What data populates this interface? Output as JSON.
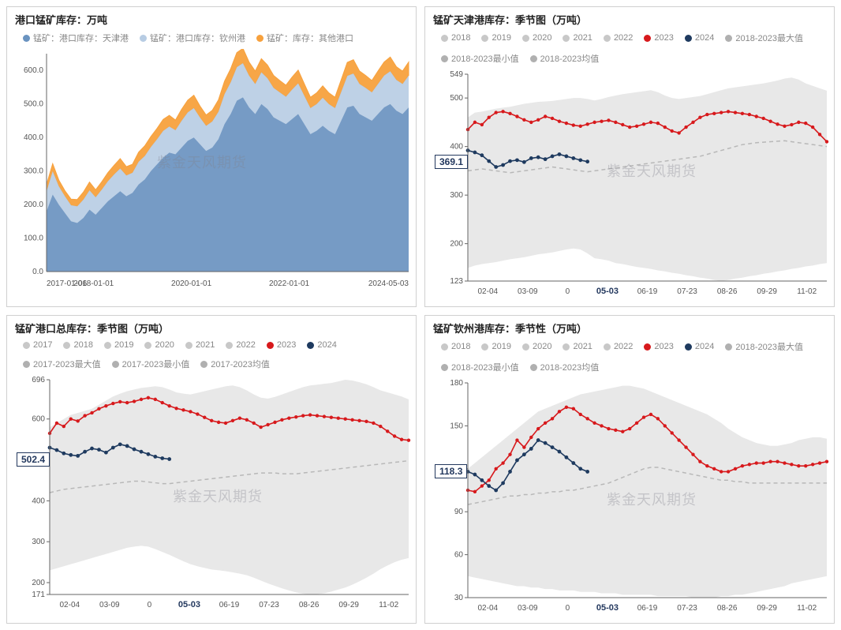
{
  "watermark": "紫金天风期货",
  "colors": {
    "red2023": "#d7191c",
    "navy2024": "#1e3a5f",
    "grayLight": "#c8c8c8",
    "grayMid": "#b0b0b0",
    "grayDash": "#b8b8b8",
    "bandFill": "#e8e8e8",
    "areaBlue": "#6a93c0",
    "areaLightBlue": "#b7cce3",
    "areaOrange": "#f7a13d",
    "axis": "#666666"
  },
  "chart1": {
    "title": "港口锰矿库存：万吨",
    "type": "stacked-area",
    "legend": [
      {
        "label": "锰矿：港口库存：天津港",
        "color": "#6a93c0"
      },
      {
        "label": "锰矿：港口库存：钦州港",
        "color": "#b7cce3"
      },
      {
        "label": "锰矿：库存：其他港口",
        "color": "#f7a13d"
      }
    ],
    "yaxis": {
      "min": 0,
      "max": 650,
      "ticks": [
        0,
        100,
        200,
        300,
        400,
        500,
        600
      ],
      "label_fmt": ".1f"
    },
    "xaxis": {
      "min_label": "2017-01-06",
      "max_label": "2024-05-03",
      "ticks": [
        "2017-01-06",
        "2018-01-01",
        "2020-01-01",
        "2022-01-01",
        "2024-05-03"
      ]
    },
    "n": 60,
    "series_tianjin": [
      180,
      230,
      200,
      175,
      150,
      145,
      160,
      185,
      170,
      190,
      210,
      225,
      240,
      225,
      235,
      260,
      275,
      300,
      320,
      340,
      355,
      350,
      370,
      390,
      400,
      380,
      360,
      370,
      395,
      440,
      470,
      510,
      520,
      490,
      470,
      500,
      485,
      460,
      450,
      440,
      455,
      470,
      440,
      410,
      420,
      435,
      420,
      410,
      450,
      490,
      495,
      470,
      460,
      450,
      470,
      490,
      500,
      480,
      470,
      490
    ],
    "series_qinzhou": [
      60,
      70,
      55,
      50,
      48,
      50,
      55,
      58,
      52,
      55,
      60,
      65,
      68,
      62,
      60,
      68,
      70,
      72,
      75,
      80,
      78,
      72,
      80,
      85,
      88,
      80,
      75,
      78,
      82,
      90,
      95,
      100,
      102,
      95,
      90,
      95,
      92,
      88,
      85,
      82,
      88,
      92,
      85,
      78,
      80,
      84,
      80,
      78,
      86,
      94,
      96,
      90,
      88,
      85,
      90,
      95,
      98,
      92,
      90,
      95
    ],
    "series_other": [
      20,
      22,
      18,
      16,
      18,
      20,
      22,
      24,
      22,
      23,
      25,
      27,
      29,
      26,
      25,
      28,
      30,
      31,
      32,
      34,
      33,
      30,
      34,
      36,
      38,
      34,
      32,
      33,
      35,
      38,
      40,
      43,
      44,
      40,
      38,
      40,
      39,
      37,
      35,
      34,
      37,
      39,
      35,
      32,
      33,
      35,
      33,
      32,
      36,
      40,
      41,
      38,
      37,
      35,
      38,
      40,
      42,
      39,
      38,
      40
    ]
  },
  "chart2": {
    "title": "锰矿天津港库存：季节图（万吨）",
    "type": "seasonal",
    "legend_row1": [
      {
        "label": "2018",
        "color": "#c8c8c8"
      },
      {
        "label": "2019",
        "color": "#c8c8c8"
      },
      {
        "label": "2020",
        "color": "#c8c8c8"
      },
      {
        "label": "2021",
        "color": "#c8c8c8"
      },
      {
        "label": "2022",
        "color": "#c8c8c8"
      },
      {
        "label": "2023",
        "color": "#d7191c"
      },
      {
        "label": "2024",
        "color": "#1e3a5f"
      }
    ],
    "legend_row2": [
      {
        "label": "2018-2023最大值",
        "color": "#b0b0b0"
      },
      {
        "label": "2018-2023最小值",
        "color": "#b0b0b0"
      },
      {
        "label": "2018-2023均值",
        "color": "#b0b0b0"
      }
    ],
    "yaxis": {
      "min": 123,
      "max": 549,
      "ticks": [
        123,
        200,
        300,
        400,
        500,
        549
      ]
    },
    "xaxis_ticks": [
      "02-04",
      "03-09",
      "0",
      "05-03",
      "06-19",
      "07-23",
      "08-26",
      "09-29",
      "11-02"
    ],
    "xaxis_bold": "05-03",
    "callout": "369.1",
    "n": 52,
    "band_max": [
      460,
      470,
      472,
      475,
      478,
      480,
      482,
      485,
      488,
      490,
      492,
      493,
      494,
      496,
      498,
      500,
      500,
      498,
      495,
      498,
      502,
      505,
      508,
      510,
      512,
      514,
      516,
      512,
      505,
      500,
      498,
      500,
      502,
      504,
      508,
      512,
      516,
      520,
      522,
      524,
      526,
      528,
      530,
      533,
      536,
      540,
      542,
      538,
      530,
      525,
      520,
      515
    ],
    "band_min": [
      150,
      155,
      158,
      160,
      162,
      165,
      168,
      170,
      172,
      175,
      178,
      180,
      182,
      185,
      188,
      190,
      188,
      180,
      170,
      168,
      165,
      160,
      158,
      155,
      152,
      150,
      148,
      145,
      143,
      140,
      138,
      135,
      133,
      130,
      128,
      125,
      123,
      125,
      128,
      130,
      133,
      135,
      138,
      140,
      143,
      145,
      148,
      150,
      153,
      155,
      158,
      160
    ],
    "mean": [
      350,
      352,
      354,
      352,
      350,
      348,
      346,
      348,
      350,
      352,
      354,
      356,
      358,
      356,
      354,
      352,
      350,
      348,
      350,
      352,
      354,
      356,
      358,
      360,
      362,
      364,
      366,
      368,
      370,
      372,
      374,
      376,
      378,
      380,
      384,
      388,
      392,
      396,
      400,
      404,
      406,
      408,
      409,
      410,
      411,
      412,
      410,
      408,
      406,
      404,
      402,
      400
    ],
    "y2023": [
      435,
      450,
      445,
      460,
      470,
      472,
      468,
      462,
      455,
      450,
      455,
      462,
      458,
      452,
      448,
      444,
      442,
      446,
      450,
      452,
      454,
      450,
      445,
      440,
      442,
      446,
      450,
      448,
      440,
      432,
      428,
      440,
      450,
      460,
      466,
      468,
      470,
      472,
      470,
      468,
      466,
      462,
      458,
      452,
      446,
      442,
      445,
      450,
      448,
      440,
      425,
      410
    ],
    "y2024": [
      392,
      388,
      382,
      370,
      358,
      362,
      370,
      372,
      368,
      376,
      378,
      374,
      380,
      384,
      380,
      376,
      372,
      369
    ]
  },
  "chart3": {
    "title": "锰矿港口总库存：季节图（万吨）",
    "type": "seasonal",
    "legend_row1": [
      {
        "label": "2017",
        "color": "#c8c8c8"
      },
      {
        "label": "2018",
        "color": "#c8c8c8"
      },
      {
        "label": "2019",
        "color": "#c8c8c8"
      },
      {
        "label": "2020",
        "color": "#c8c8c8"
      },
      {
        "label": "2021",
        "color": "#c8c8c8"
      },
      {
        "label": "2022",
        "color": "#c8c8c8"
      },
      {
        "label": "2023",
        "color": "#d7191c"
      },
      {
        "label": "2024",
        "color": "#1e3a5f"
      }
    ],
    "legend_row2": [
      {
        "label": "2017-2023最大值",
        "color": "#b0b0b0"
      },
      {
        "label": "2017-2023最小值",
        "color": "#b0b0b0"
      },
      {
        "label": "2017-2023均值",
        "color": "#b0b0b0"
      }
    ],
    "yaxis": {
      "min": 171,
      "max": 696,
      "ticks": [
        171,
        200,
        300,
        400,
        500,
        600,
        696
      ]
    },
    "xaxis_ticks": [
      "02-04",
      "03-09",
      "0",
      "05-03",
      "06-19",
      "07-23",
      "08-26",
      "09-29",
      "11-02"
    ],
    "xaxis_bold": "05-03",
    "callout": "502.4",
    "n": 52,
    "band_max": [
      580,
      590,
      600,
      610,
      615,
      620,
      625,
      635,
      645,
      655,
      662,
      668,
      672,
      676,
      678,
      680,
      678,
      672,
      665,
      662,
      660,
      664,
      668,
      672,
      676,
      680,
      682,
      678,
      670,
      660,
      652,
      650,
      654,
      660,
      666,
      672,
      678,
      682,
      684,
      686,
      688,
      692,
      696,
      694,
      690,
      685,
      678,
      670,
      665,
      660,
      655,
      648
    ],
    "band_min": [
      230,
      235,
      240,
      245,
      250,
      255,
      260,
      265,
      270,
      275,
      280,
      285,
      288,
      290,
      288,
      282,
      275,
      268,
      260,
      252,
      245,
      240,
      236,
      232,
      230,
      228,
      225,
      222,
      218,
      212,
      205,
      198,
      192,
      186,
      181,
      176,
      173,
      171,
      172,
      174,
      178,
      183,
      188,
      195,
      203,
      212,
      222,
      233,
      242,
      250,
      256,
      260
    ],
    "mean": [
      420,
      424,
      428,
      430,
      432,
      434,
      436,
      438,
      440,
      442,
      444,
      446,
      448,
      448,
      446,
      444,
      442,
      442,
      444,
      446,
      448,
      450,
      452,
      454,
      456,
      458,
      460,
      462,
      464,
      466,
      468,
      468,
      468,
      466,
      466,
      466,
      468,
      470,
      472,
      474,
      476,
      478,
      480,
      482,
      484,
      486,
      488,
      490,
      492,
      494,
      496,
      498
    ],
    "y2023": [
      565,
      590,
      582,
      600,
      595,
      608,
      615,
      625,
      632,
      638,
      642,
      640,
      643,
      648,
      652,
      648,
      640,
      632,
      626,
      622,
      618,
      612,
      604,
      596,
      592,
      590,
      596,
      602,
      598,
      590,
      580,
      586,
      592,
      598,
      602,
      605,
      608,
      610,
      608,
      606,
      604,
      602,
      600,
      598,
      596,
      594,
      590,
      582,
      570,
      558,
      550,
      548
    ],
    "y2024": [
      530,
      524,
      516,
      512,
      510,
      520,
      528,
      525,
      518,
      530,
      538,
      534,
      526,
      520,
      514,
      508,
      504,
      502
    ]
  },
  "chart4": {
    "title": "锰矿钦州港库存：季节性（万吨）",
    "type": "seasonal",
    "legend_row1": [
      {
        "label": "2018",
        "color": "#c8c8c8"
      },
      {
        "label": "2019",
        "color": "#c8c8c8"
      },
      {
        "label": "2020",
        "color": "#c8c8c8"
      },
      {
        "label": "2021",
        "color": "#c8c8c8"
      },
      {
        "label": "2022",
        "color": "#c8c8c8"
      },
      {
        "label": "2023",
        "color": "#d7191c"
      },
      {
        "label": "2024",
        "color": "#1e3a5f"
      }
    ],
    "legend_row2": [
      {
        "label": "2018-2023最大值",
        "color": "#b0b0b0"
      },
      {
        "label": "2018-2023最小值",
        "color": "#b0b0b0"
      },
      {
        "label": "2018-2023均值",
        "color": "#b0b0b0"
      }
    ],
    "yaxis": {
      "min": 30,
      "max": 180,
      "ticks": [
        30,
        60,
        90,
        120,
        150,
        180
      ]
    },
    "xaxis_ticks": [
      "02-04",
      "03-09",
      "0",
      "05-03",
      "06-19",
      "07-23",
      "08-26",
      "09-29",
      "11-02"
    ],
    "xaxis_bold": "05-03",
    "callout": "118.3",
    "n": 52,
    "band_max": [
      120,
      124,
      128,
      132,
      136,
      140,
      144,
      148,
      152,
      156,
      160,
      162,
      164,
      166,
      168,
      170,
      172,
      173,
      174,
      175,
      176,
      177,
      178,
      178,
      177,
      176,
      174,
      172,
      170,
      168,
      166,
      164,
      162,
      160,
      158,
      155,
      152,
      148,
      145,
      142,
      140,
      138,
      137,
      136,
      136,
      137,
      138,
      140,
      141,
      142,
      142,
      141
    ],
    "band_min": [
      45,
      44,
      43,
      42,
      41,
      40,
      39,
      38,
      38,
      37,
      37,
      36,
      36,
      35,
      35,
      35,
      34,
      34,
      34,
      33,
      33,
      33,
      32,
      32,
      32,
      32,
      32,
      31,
      31,
      31,
      31,
      31,
      30,
      30,
      30,
      30,
      31,
      31,
      32,
      32,
      33,
      34,
      35,
      36,
      37,
      38,
      40,
      41,
      42,
      43,
      44,
      45
    ],
    "mean": [
      95,
      96,
      97,
      98,
      99,
      100,
      101,
      101,
      102,
      102,
      103,
      103,
      104,
      104,
      105,
      105,
      106,
      107,
      108,
      109,
      110,
      112,
      114,
      116,
      118,
      120,
      121,
      121,
      120,
      119,
      118,
      117,
      116,
      115,
      114,
      113,
      112,
      112,
      111,
      111,
      110,
      110,
      110,
      110,
      110,
      110,
      110,
      110,
      110,
      110,
      110,
      110
    ],
    "y2023": [
      105,
      104,
      108,
      112,
      120,
      124,
      130,
      140,
      135,
      142,
      148,
      152,
      155,
      160,
      163,
      162,
      158,
      155,
      152,
      150,
      148,
      147,
      146,
      148,
      152,
      156,
      158,
      155,
      150,
      145,
      140,
      135,
      130,
      125,
      122,
      120,
      118,
      118,
      120,
      122,
      123,
      124,
      124,
      125,
      125,
      124,
      123,
      122,
      122,
      123,
      124,
      125
    ],
    "y2024": [
      118,
      116,
      112,
      108,
      105,
      110,
      118,
      126,
      130,
      134,
      140,
      138,
      135,
      132,
      128,
      124,
      120,
      118
    ]
  }
}
